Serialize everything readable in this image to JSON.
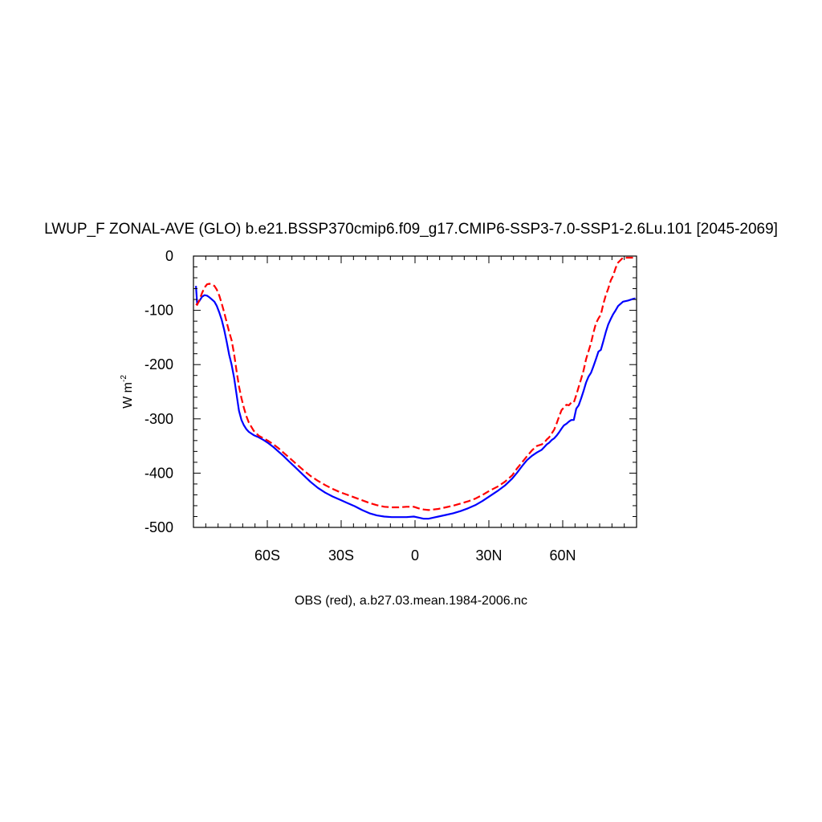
{
  "chart_data": {
    "type": "line",
    "title": "LWUP_F ZONAL-AVE (GLO) b.e21.BSSP370cmip6.f09_g17.CMIP6-SSP3-7.0-SSP1-2.6Lu.101 [2045-2069]",
    "subtitle": "OBS (red), a.b27.03.mean.1984-2006.nc",
    "ylabel": "W m",
    "ylabel_sup": "-2",
    "xlim": [
      -90,
      90
    ],
    "ylim": [
      -500,
      0
    ],
    "x_ticks": [
      {
        "value": -60,
        "label": "60S"
      },
      {
        "value": -30,
        "label": "30S"
      },
      {
        "value": 0,
        "label": "0"
      },
      {
        "value": 30,
        "label": "30N"
      },
      {
        "value": 60,
        "label": "60N"
      }
    ],
    "y_ticks": [
      {
        "value": 0,
        "label": "0"
      },
      {
        "value": -100,
        "label": "-100"
      },
      {
        "value": -200,
        "label": "-200"
      },
      {
        "value": -300,
        "label": "-300"
      },
      {
        "value": -400,
        "label": "-400"
      },
      {
        "value": -500,
        "label": "-500"
      }
    ],
    "grid": false,
    "series": [
      {
        "color": "#0000ff",
        "dash": "solid",
        "x": [
          -89,
          -88.5,
          -87.5,
          -86.5,
          -85.5,
          -84.5,
          -83.5,
          -82.5,
          -81.5,
          -80.5,
          -79.5,
          -78.5,
          -77.5,
          -76.5,
          -75.5,
          -74.5,
          -73.5,
          -72.5,
          -71.5,
          -70.5,
          -69.5,
          -68.5,
          -67.5,
          -65.5,
          -63.5,
          -61.5,
          -59.5,
          -57.5,
          -55.5,
          -53.5,
          -51.5,
          -48.5,
          -45.5,
          -42.5,
          -39.5,
          -36.5,
          -33.5,
          -30.5,
          -27.5,
          -24.5,
          -21.5,
          -18.5,
          -15.5,
          -12.5,
          -9.5,
          -6.5,
          -3.5,
          -0.5,
          1.5,
          3.5,
          5.5,
          7.5,
          9.5,
          12.5,
          15.5,
          18.5,
          21.5,
          24.5,
          27.5,
          30.5,
          33.5,
          36.5,
          39.5,
          41.5,
          43.5,
          45.5,
          47.5,
          49.5,
          51.5,
          52.5,
          53.5,
          54.5,
          55.5,
          56.5,
          57.5,
          58.5,
          59.5,
          60.5,
          61.5,
          62.5,
          63.5,
          64.5,
          65.5,
          66.5,
          67.5,
          68.5,
          69.5,
          70.5,
          71.5,
          72.5,
          73.5,
          74.5,
          75.5,
          76.5,
          77.5,
          78.5,
          79.5,
          80.5,
          81.5,
          82.5,
          84.5,
          86.5,
          88.5,
          89.5
        ],
        "y": [
          -55,
          -88,
          -82,
          -75,
          -72,
          -73,
          -76,
          -80,
          -84,
          -92,
          -104,
          -118,
          -136,
          -158,
          -182,
          -200,
          -224,
          -255,
          -285,
          -302,
          -312,
          -319,
          -324,
          -330,
          -334,
          -339,
          -345,
          -352,
          -360,
          -368,
          -377,
          -390,
          -403,
          -416,
          -427,
          -436,
          -443,
          -449,
          -455,
          -461,
          -468,
          -474,
          -478,
          -480,
          -481,
          -481,
          -481,
          -480,
          -482,
          -484,
          -484,
          -482,
          -480,
          -477,
          -474,
          -470,
          -465,
          -459,
          -451,
          -442,
          -433,
          -423,
          -410,
          -399,
          -387,
          -376,
          -368,
          -362,
          -357,
          -352,
          -347,
          -344,
          -339,
          -336,
          -331,
          -325,
          -318,
          -312,
          -309,
          -305,
          -302,
          -302,
          -281,
          -275,
          -262,
          -248,
          -233,
          -222,
          -215,
          -203,
          -190,
          -176,
          -173,
          -157,
          -140,
          -126,
          -116,
          -107,
          -100,
          -92,
          -84,
          -82,
          -79,
          -78
        ]
      },
      {
        "color": "#ff0000",
        "dash": "dashed",
        "x": [
          -89,
          -88.5,
          -87.5,
          -86.5,
          -85.5,
          -84.5,
          -83.5,
          -82.5,
          -81.5,
          -80.5,
          -79.5,
          -78.5,
          -77.5,
          -76.5,
          -75.5,
          -74.5,
          -73.5,
          -72.5,
          -71.5,
          -70.5,
          -69.5,
          -68.5,
          -67.5,
          -65.5,
          -63.5,
          -61.5,
          -59.5,
          -57.5,
          -55.5,
          -53.5,
          -51.5,
          -48.5,
          -45.5,
          -42.5,
          -39.5,
          -36.5,
          -33.5,
          -30.5,
          -27.5,
          -24.5,
          -21.5,
          -18.5,
          -15.5,
          -12.5,
          -9.5,
          -6.5,
          -3.5,
          -0.5,
          1.5,
          3.5,
          5.5,
          7.5,
          9.5,
          12.5,
          15.5,
          18.5,
          21.5,
          24.5,
          27.5,
          30.5,
          33.5,
          36.5,
          39.5,
          41.5,
          43.5,
          45.5,
          47.5,
          49.5,
          51.5,
          52.5,
          53.5,
          54.5,
          55.5,
          56.5,
          57.5,
          58.5,
          59.5,
          60.5,
          61.5,
          62.5,
          63.5,
          64.5,
          65.5,
          66.5,
          67.5,
          68.5,
          69.5,
          70.5,
          71.5,
          72.5,
          73.5,
          74.5,
          75.5,
          76.5,
          77.5,
          78.5,
          79.5,
          80.5,
          81.5,
          82.5,
          84.5,
          86.5,
          88.5,
          89.5
        ],
        "y": [
          -88,
          -90,
          -80,
          -68,
          -58,
          -52,
          -51,
          -52,
          -55,
          -62,
          -73,
          -88,
          -104,
          -122,
          -140,
          -155,
          -180,
          -212,
          -240,
          -262,
          -280,
          -295,
          -307,
          -322,
          -331,
          -336,
          -341,
          -347,
          -354,
          -362,
          -370,
          -382,
          -394,
          -405,
          -414,
          -422,
          -429,
          -435,
          -440,
          -445,
          -450,
          -455,
          -459,
          -462,
          -463,
          -463,
          -462,
          -462,
          -465,
          -467,
          -468,
          -467,
          -466,
          -463,
          -460,
          -456,
          -452,
          -447,
          -440,
          -432,
          -425,
          -416,
          -404,
          -391,
          -380,
          -369,
          -358,
          -350,
          -347,
          -344,
          -338,
          -334,
          -327,
          -320,
          -309,
          -296,
          -284,
          -279,
          -274,
          -275,
          -270,
          -270,
          -256,
          -241,
          -226,
          -210,
          -190,
          -175,
          -160,
          -141,
          -124,
          -115,
          -108,
          -88,
          -72,
          -60,
          -45,
          -36,
          -22,
          -12,
          -3,
          -3,
          -3,
          -3
        ]
      }
    ]
  }
}
